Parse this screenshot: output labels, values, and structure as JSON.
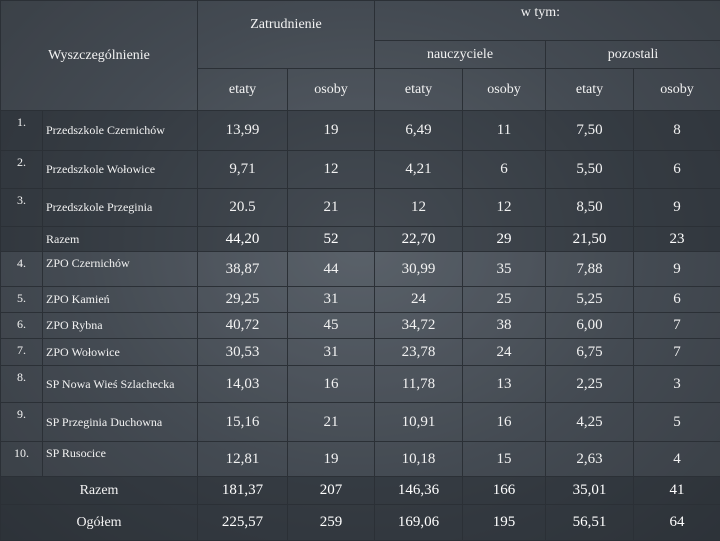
{
  "header": {
    "spec": "Wyszczególnienie",
    "employment": "Zatrudnienie",
    "of_which": "w tym:",
    "teachers": "nauczyciele",
    "others": "pozostali",
    "etaty": "etaty",
    "osoby": "osoby"
  },
  "rows": [
    {
      "no": "1.",
      "name": "Przedszkole Czernichów",
      "v": [
        "13,99",
        "19",
        "6,49",
        "11",
        "7,50",
        "8"
      ]
    },
    {
      "no": "2.",
      "name": "Przedszkole Wołowice",
      "v": [
        "9,71",
        "12",
        "4,21",
        "6",
        "5,50",
        "6"
      ]
    },
    {
      "no": "3.",
      "name": "Przedszkole Przeginia",
      "v": [
        "20.5",
        "21",
        "12",
        "12",
        "8,50",
        "9"
      ]
    },
    {
      "no": "",
      "name": "Razem",
      "v": [
        "44,20",
        "52",
        "22,70",
        "29",
        "21,50",
        "23"
      ]
    },
    {
      "no": "4.",
      "name": "ZPO Czernichów",
      "v": [
        "38,87",
        "44",
        "30,99",
        "35",
        "7,88",
        "9"
      ]
    },
    {
      "no": "5.",
      "name": "ZPO Kamień",
      "v": [
        "29,25",
        "31",
        "24",
        "25",
        "5,25",
        "6"
      ]
    },
    {
      "no": "6.",
      "name": "ZPO Rybna",
      "v": [
        "40,72",
        "45",
        "34,72",
        "38",
        "6,00",
        "7"
      ]
    },
    {
      "no": "7.",
      "name": "ZPO Wołowice",
      "v": [
        "30,53",
        "31",
        "23,78",
        "24",
        "6,75",
        "7"
      ]
    },
    {
      "no": "8.",
      "name": "SP Nowa Wieś Szlachecka",
      "v": [
        "14,03",
        "16",
        "11,78",
        "13",
        "2,25",
        "3"
      ]
    },
    {
      "no": "9.",
      "name": "SP Przeginia Duchowna",
      "v": [
        "15,16",
        "21",
        "10,91",
        "16",
        "4,25",
        "5"
      ]
    },
    {
      "no": "10.",
      "name": "SP Rusocice",
      "v": [
        "12,81",
        "19",
        "10,18",
        "15",
        "2,63",
        "4"
      ]
    },
    {
      "no": "",
      "name": "Razem",
      "v": [
        "181,37",
        "207",
        "146,36",
        "166",
        "35,01",
        "41"
      ]
    },
    {
      "no": "",
      "name": "Ogółem",
      "v": [
        "225,57",
        "259",
        "169,06",
        "195",
        "56,51",
        "64"
      ]
    }
  ]
}
